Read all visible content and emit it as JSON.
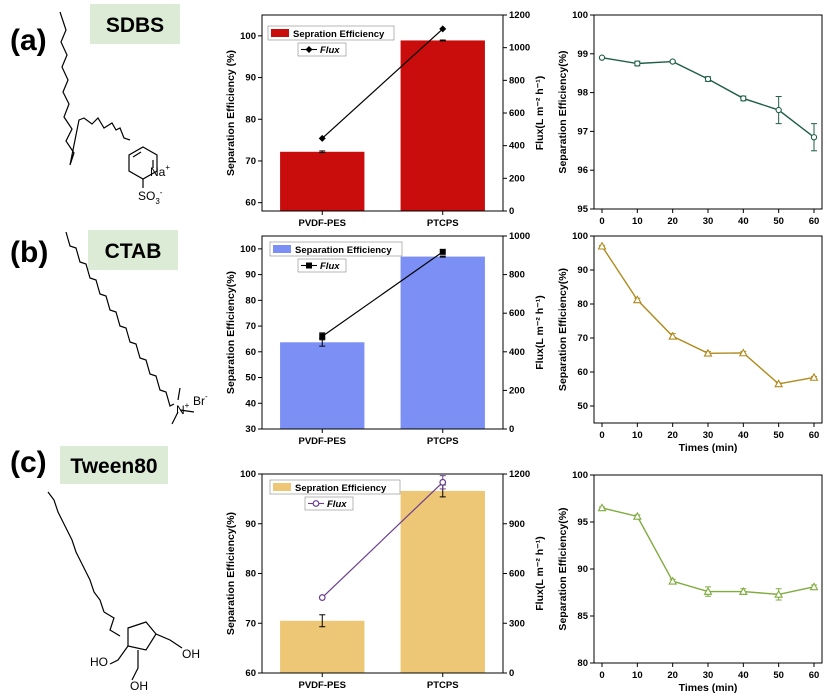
{
  "panels": [
    {
      "letter": "(a)",
      "surfactant": "SDBS",
      "labels": [
        "Na",
        "+",
        "SO",
        "3",
        "-"
      ]
    },
    {
      "letter": "(b)",
      "surfactant": "CTAB",
      "labels": [
        "Br",
        "-",
        "N",
        "+"
      ]
    },
    {
      "letter": "(c)",
      "surfactant": "Tween80",
      "labels": [
        "OH",
        "HO",
        "OH"
      ]
    }
  ],
  "chart_data": [
    {
      "type": "bar",
      "panel": "a",
      "categories": [
        "PVDF-PES",
        "PTCPS"
      ],
      "series": [
        {
          "name": "Sepration Efficiency",
          "values": [
            72.2,
            98.9
          ],
          "errors": [
            0.2,
            0.1
          ],
          "axis": "left",
          "color": "#c90d0d"
        },
        {
          "name": "Flux",
          "kind": "line",
          "values": [
            445,
            1115
          ],
          "axis": "right",
          "color": "#000000",
          "marker": "diamond"
        }
      ],
      "ylabel": "Separation Efficiency (%)",
      "ylim": [
        58,
        105
      ],
      "yticks": [
        60,
        70,
        80,
        90,
        100
      ],
      "y2label": "Flux(L m⁻² h⁻¹)",
      "y2lim": [
        0,
        1200
      ],
      "y2ticks": [
        0,
        200,
        400,
        600,
        800,
        1000,
        1200
      ]
    },
    {
      "type": "line",
      "panel": "a",
      "x": [
        0,
        10,
        20,
        30,
        40,
        50,
        60
      ],
      "series": [
        {
          "name": "",
          "values": [
            98.9,
            98.75,
            98.8,
            98.35,
            97.85,
            97.55,
            96.85
          ],
          "errors": [
            0.02,
            0.06,
            0.03,
            0.06,
            0.06,
            0.35,
            0.35
          ],
          "color": "#1f5f45",
          "marker": "circle"
        }
      ],
      "ylabel": "Separation Efficiency(%)",
      "ylim": [
        95,
        100
      ],
      "yticks": [
        95,
        96,
        97,
        98,
        99,
        100
      ],
      "xticks": [
        0,
        10,
        20,
        30,
        40,
        50,
        60
      ],
      "xlabel": ""
    },
    {
      "type": "bar",
      "panel": "b",
      "categories": [
        "PVDF-PES",
        "PTCPS"
      ],
      "series": [
        {
          "name": "Separation Efficiency",
          "values": [
            63.7,
            97.0
          ],
          "errors": [
            1.5,
            0.2
          ],
          "axis": "left",
          "color": "#7b8ff5"
        },
        {
          "name": "Flux",
          "kind": "line",
          "values": [
            480,
            918
          ],
          "errors": [
            18,
            0
          ],
          "axis": "right",
          "color": "#000000",
          "marker": "square"
        }
      ],
      "ylabel": "Separation Efficiency(%)",
      "ylim": [
        30,
        105
      ],
      "yticks": [
        30,
        40,
        50,
        60,
        70,
        80,
        90,
        100
      ],
      "y2label": "Flux(L m⁻² h⁻¹)",
      "y2lim": [
        0,
        1000
      ],
      "y2ticks": [
        0,
        200,
        400,
        600,
        800,
        1000
      ]
    },
    {
      "type": "line",
      "panel": "b",
      "x": [
        0,
        10,
        20,
        30,
        40,
        50,
        60
      ],
      "series": [
        {
          "name": "",
          "values": [
            97.0,
            81.2,
            70.5,
            65.5,
            65.6,
            56.5,
            58.4
          ],
          "errors": [
            0.2,
            0.5,
            0.8,
            0.5,
            0.4,
            0.3,
            0.3
          ],
          "color": "#b08a1d",
          "marker": "triangle-up"
        }
      ],
      "ylabel": "Separation Efficiency(%)",
      "ylim": [
        45,
        100
      ],
      "yticks": [
        50,
        60,
        70,
        80,
        90,
        100
      ],
      "xticks": [
        0,
        10,
        20,
        30,
        40,
        50,
        60
      ],
      "xlabel": "Times (min)"
    },
    {
      "type": "bar",
      "panel": "c",
      "categories": [
        "PVDF-PES",
        "PTCPS"
      ],
      "series": [
        {
          "name": "Sepration Efficiency",
          "values": [
            70.5,
            96.6
          ],
          "errors": [
            1.2,
            1.2
          ],
          "axis": "left",
          "color": "#edc775"
        },
        {
          "name": "Flux",
          "kind": "line",
          "values": [
            455,
            1150
          ],
          "errors": [
            0,
            40
          ],
          "axis": "right",
          "color": "#6a3d8f",
          "marker": "circle-open"
        }
      ],
      "ylabel": "Separation Efficiency(%)",
      "ylim": [
        60,
        100
      ],
      "yticks": [
        60,
        70,
        80,
        90,
        100
      ],
      "y2label": "Flux(L m⁻² h⁻¹)",
      "y2lim": [
        0,
        1200
      ],
      "y2ticks": [
        0,
        300,
        600,
        900,
        1200
      ]
    },
    {
      "type": "line",
      "panel": "c",
      "x": [
        0,
        10,
        20,
        30,
        40,
        50,
        60
      ],
      "series": [
        {
          "name": "",
          "values": [
            96.5,
            95.6,
            88.7,
            87.6,
            87.6,
            87.3,
            88.1
          ],
          "errors": [
            0.1,
            0.15,
            0.2,
            0.5,
            0.3,
            0.6,
            0.2
          ],
          "color": "#7fab3f",
          "marker": "triangle-up"
        }
      ],
      "ylabel": "Separation Efficiency(%)",
      "ylim": [
        80,
        100
      ],
      "yticks": [
        80,
        85,
        90,
        95,
        100
      ],
      "xticks": [
        0,
        10,
        20,
        30,
        40,
        50,
        60
      ],
      "xlabel": "Times (min)"
    }
  ]
}
